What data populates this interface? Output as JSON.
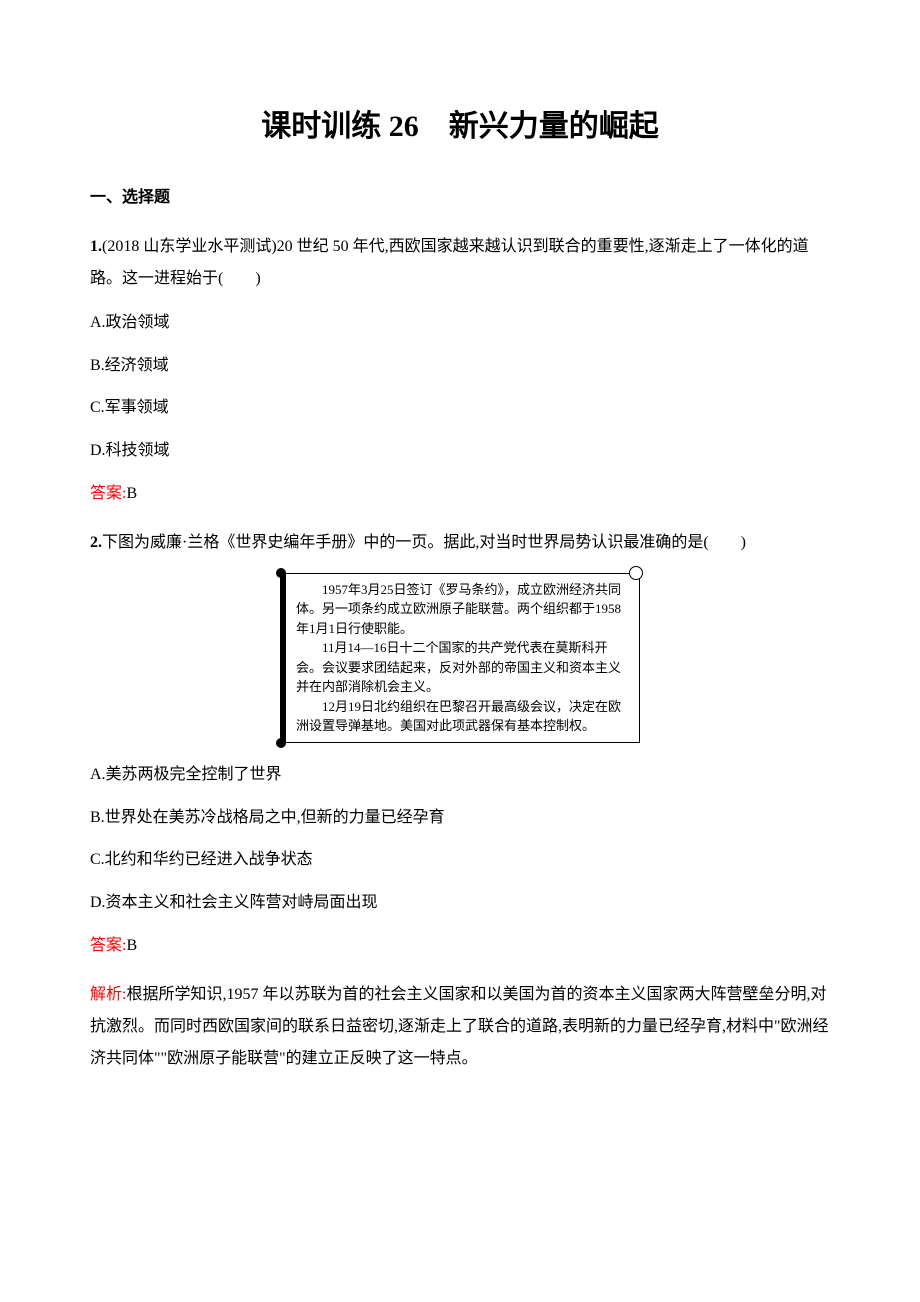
{
  "title": "课时训练 26　新兴力量的崛起",
  "section1": "一、选择题",
  "q1": {
    "num": "1.",
    "text": "(2018 山东学业水平测试)20 世纪 50 年代,西欧国家越来越认识到联合的重要性,逐渐走上了一体化的道路。这一进程始于(　　)",
    "optA": "A.政治领域",
    "optB": "B.经济领域",
    "optC": "C.军事领域",
    "optD": "D.科技领域",
    "answer_label": "答案:",
    "answer": "B"
  },
  "q2": {
    "num": "2.",
    "text": "下图为威廉·兰格《世界史编年手册》中的一页。据此,对当时世界局势认识最准确的是(　　)",
    "clip": {
      "p1": "1957年3月25日签订《罗马条约》，成立欧洲经济共同体。另一项条约成立欧洲原子能联营。两个组织都于1958年1月1日行使职能。",
      "p2": "11月14—16日十二个国家的共产党代表在莫斯科开会。会议要求团结起来，反对外部的帝国主义和资本主义并在内部消除机会主义。",
      "p3": "12月19日北约组织在巴黎召开最高级会议，决定在欧洲设置导弹基地。美国对此项武器保有基本控制权。"
    },
    "optA": "A.美苏两极完全控制了世界",
    "optB": "B.世界处在美苏冷战格局之中,但新的力量已经孕育",
    "optC": "C.北约和华约已经进入战争状态",
    "optD": "D.资本主义和社会主义阵营对峙局面出现",
    "answer_label": "答案:",
    "answer": "B",
    "analysis_label": "解析:",
    "analysis": "根据所学知识,1957 年以苏联为首的社会主义国家和以美国为首的资本主义国家两大阵营壁垒分明,对抗激烈。而同时西欧国家间的联系日益密切,逐渐走上了联合的道路,表明新的力量已经孕育,材料中\"欧洲经济共同体\"\"欧洲原子能联营\"的建立正反映了这一特点。"
  }
}
